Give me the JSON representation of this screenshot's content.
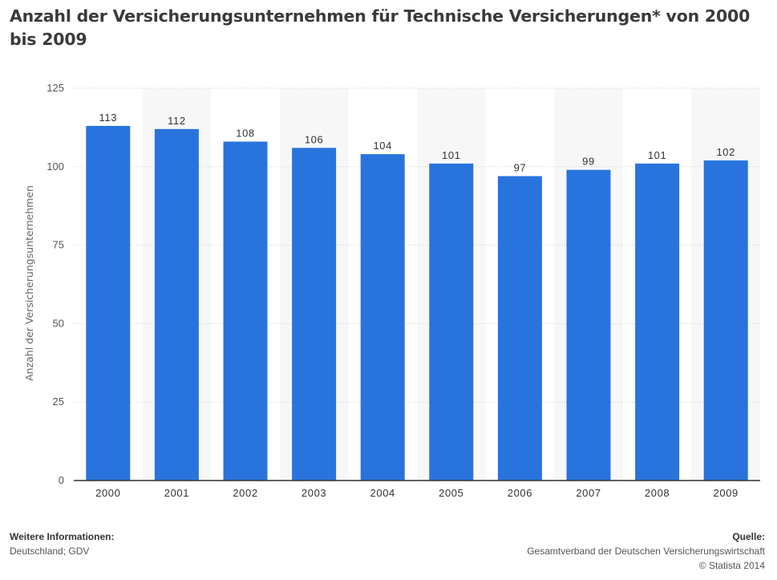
{
  "title": "Anzahl der Versicherungsunternehmen für Technische Versicherungen* von 2000 bis 2009",
  "footer": {
    "info_heading": "Weitere Informationen:",
    "info_text": "Deutschland; GDV",
    "source_heading": "Quelle:",
    "source_text": "Gesamtverband der Deutschen Versicherungswirtschaft",
    "copyright": "© Statista 2014"
  },
  "colors": {
    "bar": "#2874dc",
    "band": "#f7f7f7",
    "grid": "#cfcfcf",
    "axis": "#333333",
    "text": "#555555"
  },
  "chart_data": {
    "type": "bar",
    "categories": [
      "2000",
      "2001",
      "2002",
      "2003",
      "2004",
      "2005",
      "2006",
      "2007",
      "2008",
      "2009"
    ],
    "values": [
      113,
      112,
      108,
      106,
      104,
      101,
      97,
      99,
      101,
      102
    ],
    "ylabel": "Anzahl der Versicherungsunternehmen",
    "xlabel": "",
    "ylim": [
      0,
      125
    ],
    "yticks": [
      0,
      25,
      50,
      75,
      100,
      125
    ],
    "grid": true,
    "data_labels": true
  }
}
